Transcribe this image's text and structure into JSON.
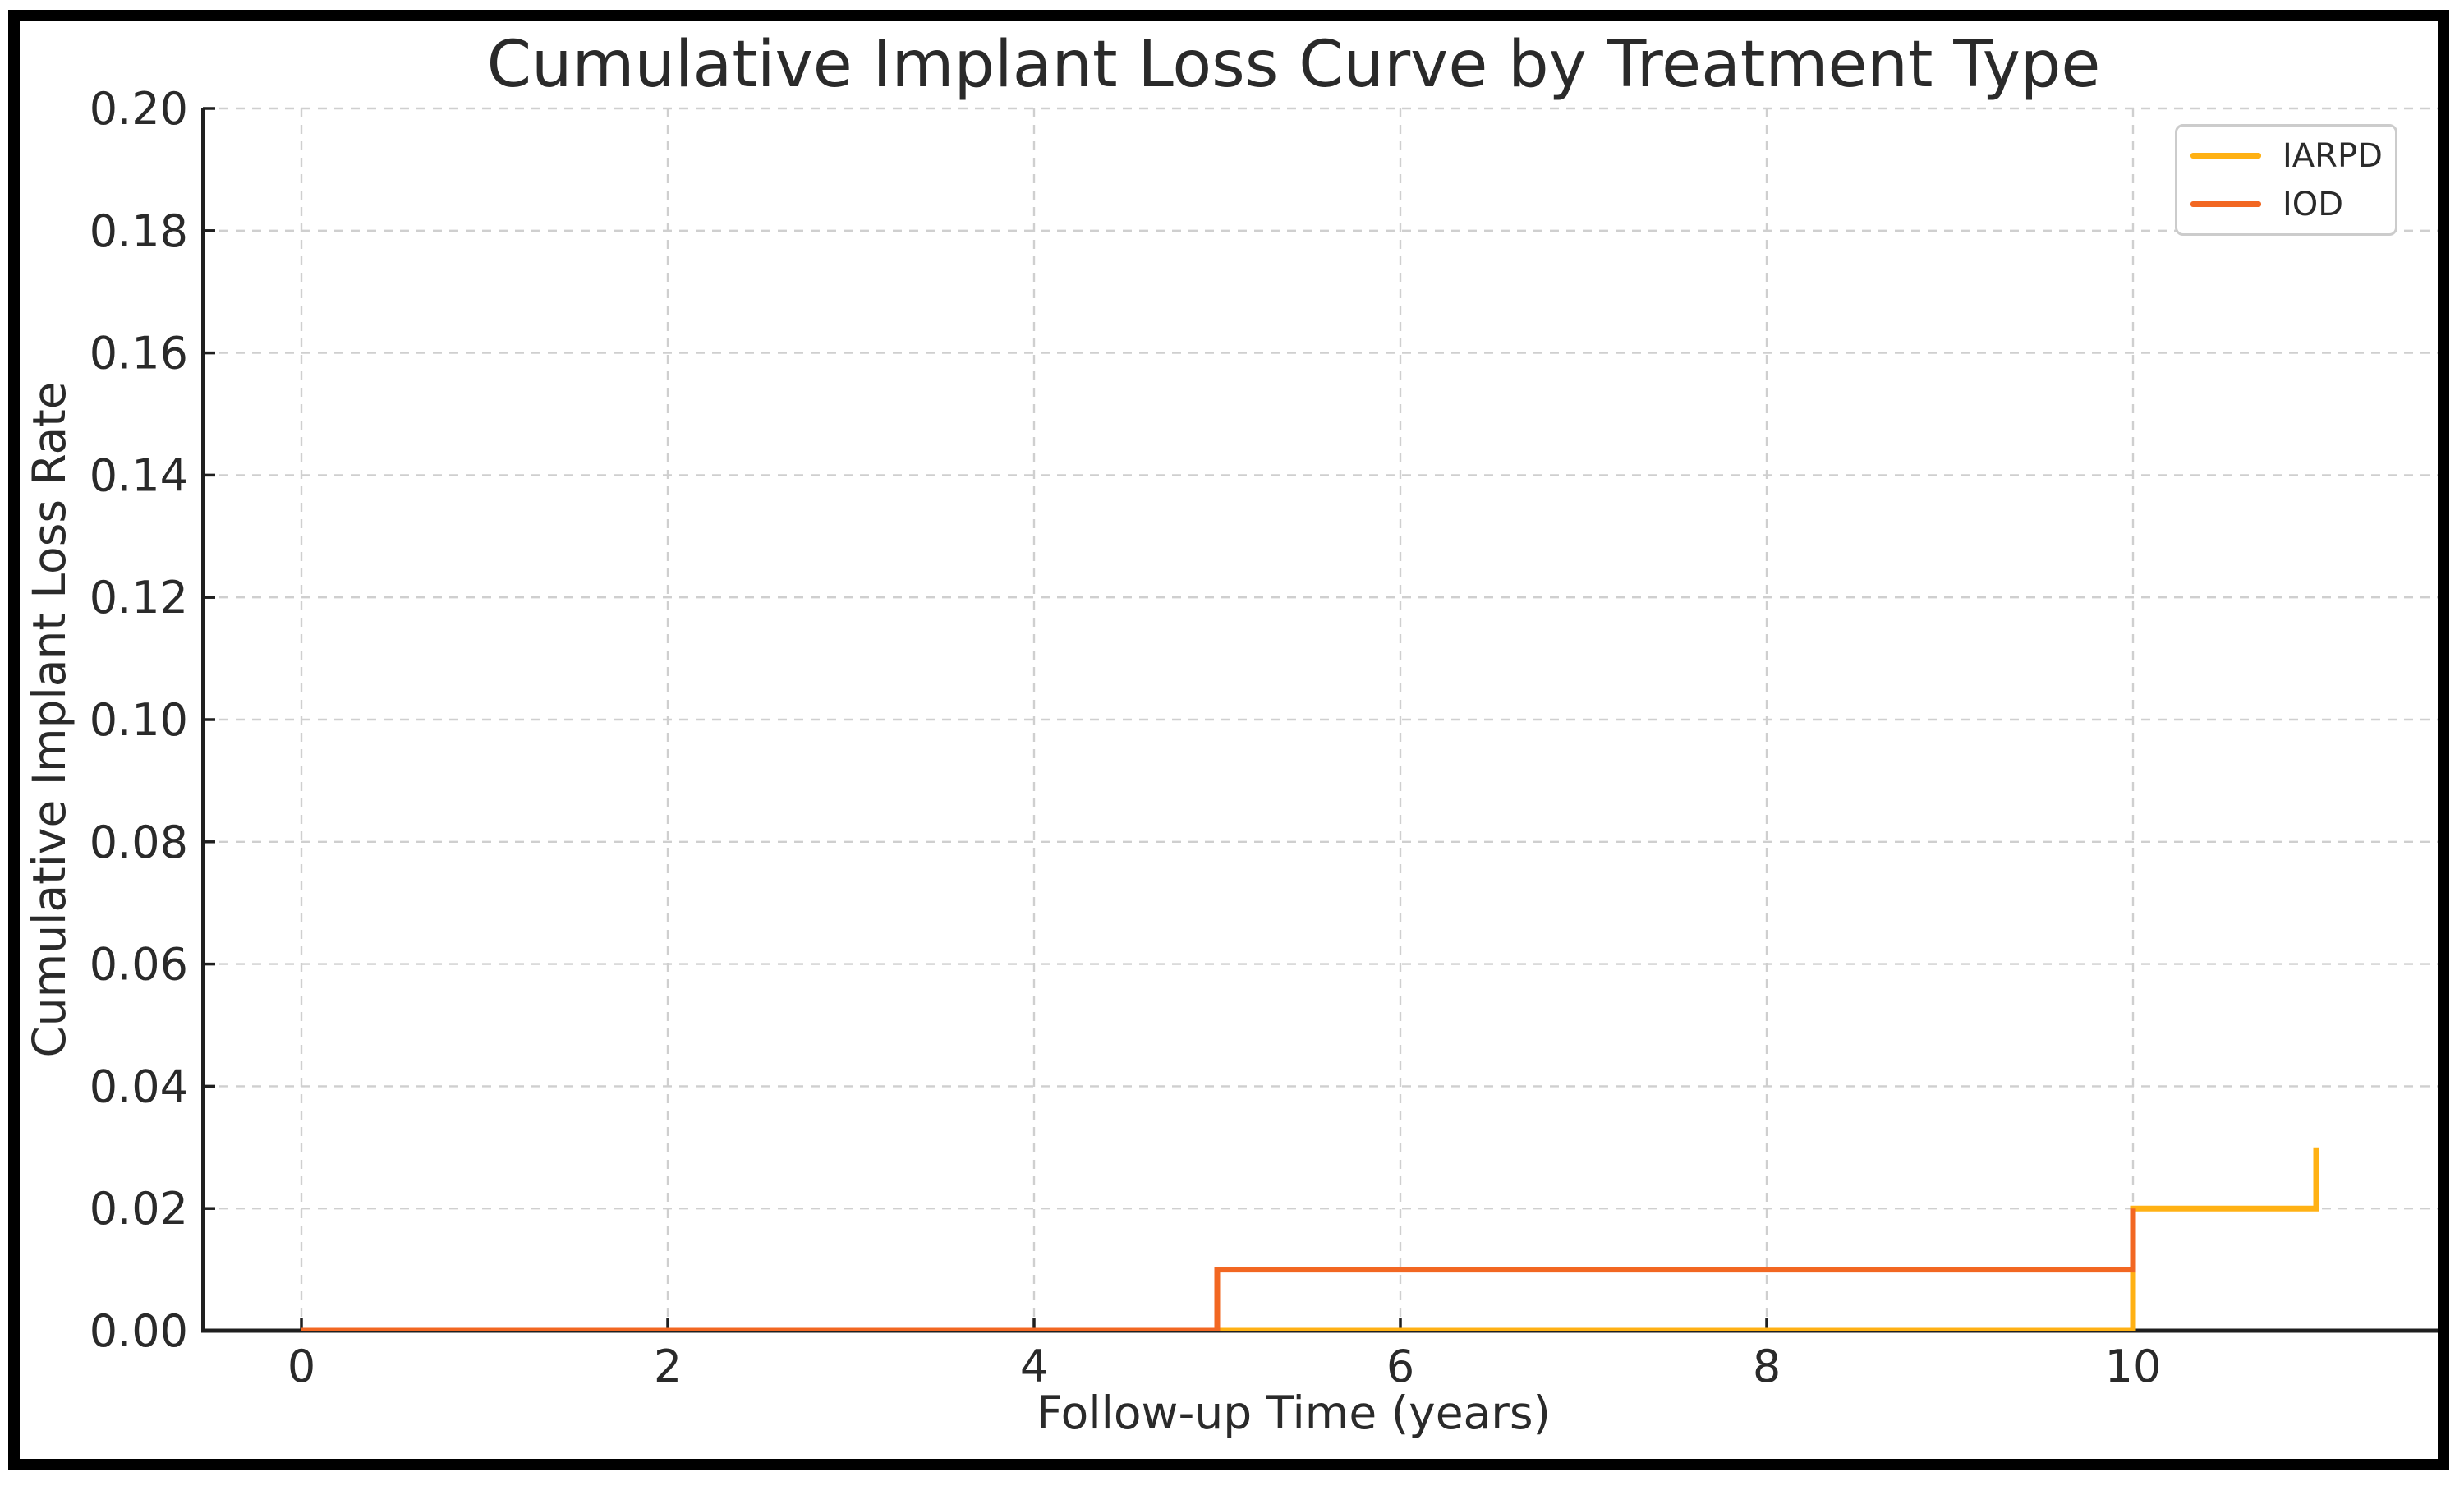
{
  "chart_data": {
    "type": "line",
    "subtype": "step-post",
    "title": "Cumulative Implant Loss Curve by Treatment Type",
    "xlabel": "Follow-up Time (years)",
    "ylabel": "Cumulative Implant Loss Rate",
    "xlim": [
      -0.55,
      11.66
    ],
    "ylim": [
      0.0,
      0.2
    ],
    "xtick_values": [
      0,
      2,
      4,
      6,
      8,
      10
    ],
    "xtick_labels": [
      "0",
      "2",
      "4",
      "6",
      "8",
      "10"
    ],
    "ytick_values": [
      0.0,
      0.02,
      0.04,
      0.06,
      0.08,
      0.1,
      0.12,
      0.14,
      0.16,
      0.18,
      0.2
    ],
    "ytick_labels": [
      "0.00",
      "0.02",
      "0.04",
      "0.06",
      "0.08",
      "0.10",
      "0.12",
      "0.14",
      "0.16",
      "0.18",
      "0.20"
    ],
    "grid": {
      "on": true,
      "style": "dashed",
      "color": "#cfcfcf"
    },
    "legend": {
      "position": "upper right",
      "entries": [
        {
          "label": "IARPD",
          "color": "#FFB114"
        },
        {
          "label": "IOD",
          "color": "#F26722"
        }
      ]
    },
    "series": [
      {
        "name": "IARPD",
        "color": "#FFB114",
        "points": [
          [
            0,
            0.0
          ],
          [
            10,
            0.0
          ],
          [
            10,
            0.02
          ],
          [
            11,
            0.02
          ],
          [
            11,
            0.03
          ]
        ]
      },
      {
        "name": "IOD",
        "color": "#F26722",
        "points": [
          [
            0,
            0.0
          ],
          [
            5,
            0.0
          ],
          [
            5,
            0.01
          ],
          [
            10,
            0.01
          ],
          [
            10,
            0.02
          ]
        ]
      }
    ],
    "axis_color": "#1f1f1f",
    "text_color": "#2a2a2a"
  }
}
